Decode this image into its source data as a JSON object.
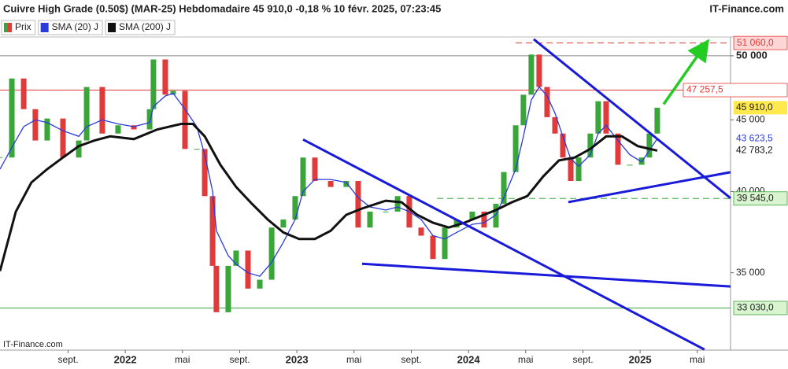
{
  "chart_data": {
    "type": "candlestick",
    "title": "Cuivre High Grade (0.50$) (MAR-25) Hebdomadaire 45 910,0 -0,18 % 10 févr. 2025, 07:23:45",
    "brand": "IT-Finance.com",
    "watermark": "IT-Finance.com",
    "log_scale": true,
    "xlim": [
      2021.27,
      2025.527
    ],
    "ylim": [
      30820,
      51570
    ],
    "xticks": [
      {
        "value": 2021.667,
        "label": "sept."
      },
      {
        "value": 2022,
        "label": "2022"
      },
      {
        "value": 2022.333,
        "label": "mai"
      },
      {
        "value": 2022.667,
        "label": "sept."
      },
      {
        "value": 2023,
        "label": "2023"
      },
      {
        "value": 2023.333,
        "label": "mai"
      },
      {
        "value": 2023.667,
        "label": "sept."
      },
      {
        "value": 2024,
        "label": "2024"
      },
      {
        "value": 2024.333,
        "label": "mai"
      },
      {
        "value": 2024.667,
        "label": "sept."
      },
      {
        "value": 2025,
        "label": "2025"
      },
      {
        "value": 2025.333,
        "label": "mai"
      }
    ],
    "yticks": [
      {
        "value": 50000,
        "label": "50 000"
      },
      {
        "value": 45000,
        "label": "45 000"
      },
      {
        "value": 40000,
        "label": "40 000"
      },
      {
        "value": 35000,
        "label": "35 000"
      }
    ],
    "series": [
      {
        "name": "Prix",
        "color": "#d9534f",
        "up_color": "#3aa63a",
        "down_color": "#e03a3a",
        "label_bg": "#ffe94d",
        "last_label": "45 910,0",
        "x": [
          2021.27,
          2021.339,
          2021.408,
          2021.476,
          2021.545,
          2021.637,
          2021.729,
          2021.775,
          2021.866,
          2021.958,
          2022.05,
          2022.142,
          2022.164,
          2022.233,
          2022.279,
          2022.348,
          2022.417,
          2022.463,
          2022.509,
          2022.531,
          2022.6,
          2022.646,
          2022.715,
          2022.784,
          2022.853,
          2022.921,
          2022.99,
          2023.036,
          2023.105,
          2023.197,
          2023.288,
          2023.357,
          2023.426,
          2023.518,
          2023.587,
          2023.655,
          2023.724,
          2023.793,
          2023.862,
          2023.931,
          2024.022,
          2024.091,
          2024.16,
          2024.206,
          2024.275,
          2024.32,
          2024.366,
          2024.412,
          2024.458,
          2024.504,
          2024.55,
          2024.596,
          2024.642,
          2024.71,
          2024.756,
          2024.802,
          2024.871,
          2024.94,
          2025.009,
          2025.054,
          2025.1
        ],
        "values": [
          42300,
          48170,
          45800,
          43500,
          45100,
          42300,
          43500,
          47500,
          44000,
          44600,
          44300,
          45800,
          49700,
          46900,
          47200,
          42900,
          42900,
          39700,
          35400,
          32800,
          35400,
          36300,
          34100,
          34600,
          37700,
          38200,
          39700,
          42300,
          40700,
          40300,
          40700,
          37700,
          38700,
          38700,
          39700,
          37700,
          37200,
          35800,
          37700,
          38200,
          38700,
          37700,
          39200,
          41300,
          44600,
          46900,
          50100,
          47500,
          45200,
          44000,
          42300,
          40700,
          42300,
          44000,
          46400,
          44000,
          41800,
          41800,
          42300,
          44000,
          45910
        ]
      },
      {
        "name": "SMA (20) J",
        "color": "#2a3bdc",
        "width": 1.3,
        "last_label": "43 623,5",
        "x": [
          2021.27,
          2021.339,
          2021.408,
          2021.476,
          2021.545,
          2021.637,
          2021.729,
          2021.775,
          2021.866,
          2021.958,
          2022.05,
          2022.142,
          2022.164,
          2022.233,
          2022.279,
          2022.348,
          2022.417,
          2022.463,
          2022.509,
          2022.531,
          2022.6,
          2022.646,
          2022.715,
          2022.784,
          2022.853,
          2022.921,
          2022.99,
          2023.036,
          2023.105,
          2023.197,
          2023.288,
          2023.357,
          2023.426,
          2023.518,
          2023.587,
          2023.655,
          2023.724,
          2023.793,
          2023.862,
          2023.931,
          2024.022,
          2024.091,
          2024.16,
          2024.206,
          2024.275,
          2024.32,
          2024.366,
          2024.412,
          2024.458,
          2024.504,
          2024.55,
          2024.596,
          2024.642,
          2024.71,
          2024.756,
          2024.802,
          2024.871,
          2024.94,
          2025.009,
          2025.054,
          2025.1
        ],
        "values": [
          41500,
          43000,
          44500,
          45000,
          44800,
          44200,
          43800,
          44500,
          45000,
          44700,
          44500,
          44800,
          46000,
          46800,
          47000,
          45800,
          44500,
          42500,
          40000,
          37500,
          36000,
          35500,
          35000,
          34800,
          35600,
          36800,
          38200,
          40000,
          40800,
          40800,
          40600,
          39600,
          39000,
          38800,
          39000,
          38700,
          38200,
          37200,
          37000,
          37400,
          37900,
          38000,
          38500,
          39600,
          41500,
          43800,
          46500,
          47500,
          46800,
          45500,
          43800,
          42200,
          41700,
          42500,
          44000,
          44600,
          43500,
          42500,
          42000,
          42800,
          43623.5
        ]
      },
      {
        "name": "SMA (200) J",
        "color": "#111111",
        "width": 3,
        "last_label": "42 783,2",
        "x": [
          2021.27,
          2021.362,
          2021.453,
          2021.545,
          2021.637,
          2021.729,
          2021.82,
          2021.912,
          2022.05,
          2022.187,
          2022.325,
          2022.394,
          2022.463,
          2022.554,
          2022.646,
          2022.738,
          2022.83,
          2022.921,
          2023.013,
          2023.105,
          2023.197,
          2023.288,
          2023.38,
          2023.518,
          2023.61,
          2023.701,
          2023.793,
          2023.885,
          2023.976,
          2024.068,
          2024.16,
          2024.252,
          2024.343,
          2024.435,
          2024.527,
          2024.619,
          2024.71,
          2024.802,
          2024.894,
          2024.986,
          2025.1
        ],
        "values": [
          35100,
          38700,
          40600,
          41500,
          42300,
          43100,
          43500,
          43800,
          43600,
          44300,
          44700,
          44700,
          43800,
          41800,
          40300,
          39200,
          38200,
          37400,
          37000,
          37000,
          37500,
          38500,
          38900,
          39400,
          39300,
          38500,
          38000,
          37700,
          38000,
          38400,
          38800,
          39300,
          39700,
          41000,
          42100,
          42300,
          42900,
          43800,
          43800,
          43100,
          42783.2
        ]
      }
    ],
    "levels": [
      {
        "value": 50000,
        "color": "#888888"
      },
      {
        "value": 51060,
        "label": "51 060,0",
        "color": "#e03a3a",
        "label_bg": "#ffd6d6",
        "dash": true,
        "x_from": 2024.275
      },
      {
        "value": 47257.5,
        "label": "47 257,5",
        "color": "#e03a3a",
        "label_bg": "#ffffff"
      },
      {
        "value": 39545,
        "label": "39 545,0",
        "color": "#3aa63a",
        "label_bg": "#d8f5d0",
        "dash": true,
        "x_from": 2023.816
      },
      {
        "value": 33030,
        "label": "33 030,0",
        "color": "#3aa63a",
        "label_bg": "#d8f5d0"
      }
    ],
    "trendlines": [
      {
        "color": "#1a1adb",
        "x": [
          2023.036,
          2025.375
        ],
        "values": [
          43570,
          30850
        ]
      },
      {
        "color": "#1a1adb",
        "x": [
          2024.38,
          2025.527
        ],
        "values": [
          51380,
          39570
        ]
      },
      {
        "color": "#1a1adb",
        "x": [
          2023.38,
          2025.527
        ],
        "values": [
          35520,
          34220
        ]
      },
      {
        "color": "#1a1adb",
        "x": [
          2024.582,
          2025.527
        ],
        "values": [
          39310,
          41290
        ]
      }
    ],
    "arrow": {
      "color": "#22cc22",
      "x": [
        2025.137,
        2025.385
      ],
      "values": [
        46170,
        51040
      ]
    }
  }
}
